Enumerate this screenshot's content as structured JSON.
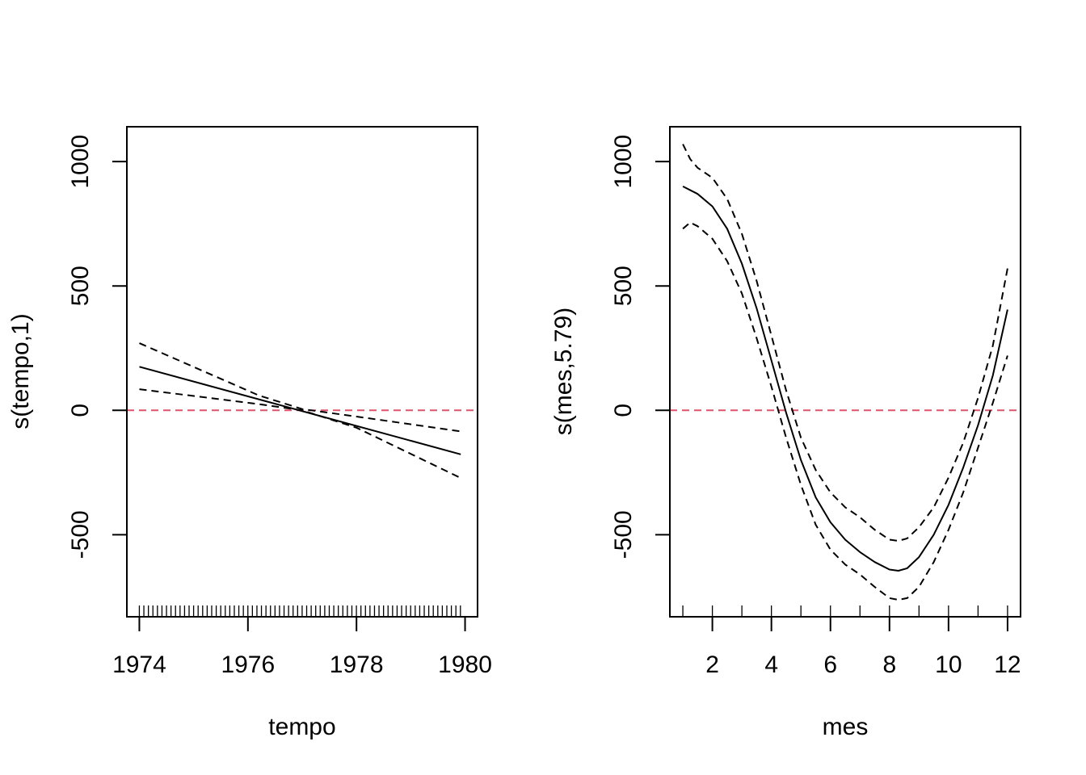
{
  "colors": {
    "fit": "#000000",
    "band": "#000000",
    "zero_line": "#DF536B"
  },
  "chart_data": [
    {
      "type": "line",
      "xlabel": "tempo",
      "ylabel": "s(tempo,1)",
      "xlim": [
        1973.77,
        1980.23
      ],
      "ylim": [
        -830,
        1140
      ],
      "xticks": [
        1974,
        1976,
        1978,
        1980
      ],
      "yticks": [
        -500,
        0,
        500,
        1000
      ],
      "reference_line": {
        "y": 0,
        "style": "dashed"
      },
      "rug": {
        "from": 1974.0,
        "to": 1979.92,
        "step": 0.0833
      },
      "series": [
        {
          "role": "fit",
          "style": "solid",
          "x": [
            1974.0,
            1979.92
          ],
          "y": [
            175,
            -177
          ]
        },
        {
          "role": "upper",
          "style": "dashed",
          "x": [
            1974.0,
            1976.2,
            1977.0,
            1978.0,
            1979.92
          ],
          "y": [
            270,
            60,
            5,
            -25,
            -85
          ]
        },
        {
          "role": "lower",
          "style": "dashed",
          "x": [
            1974.0,
            1976.2,
            1977.0,
            1978.0,
            1979.92
          ],
          "y": [
            85,
            25,
            0,
            -70,
            -272
          ]
        }
      ]
    },
    {
      "type": "line",
      "xlabel": "mes",
      "ylabel": "s(mes,5.79)",
      "xlim": [
        0.56,
        12.44
      ],
      "ylim": [
        -830,
        1140
      ],
      "xticks": [
        2,
        4,
        6,
        8,
        10,
        12
      ],
      "yticks": [
        -500,
        0,
        500,
        1000
      ],
      "reference_line": {
        "y": 0,
        "style": "dashed"
      },
      "rug": {
        "from": 1,
        "to": 12,
        "step": 1
      },
      "series": [
        {
          "role": "fit",
          "style": "solid",
          "x": [
            1,
            1.5,
            2,
            2.5,
            3,
            3.5,
            4,
            4.5,
            5,
            5.5,
            6,
            6.5,
            7,
            7.5,
            8,
            8.3,
            8.6,
            9,
            9.5,
            10,
            10.5,
            11,
            11.5,
            12
          ],
          "y": [
            900,
            870,
            820,
            730,
            590,
            410,
            200,
            -10,
            -200,
            -350,
            -450,
            -520,
            -570,
            -610,
            -640,
            -645,
            -635,
            -590,
            -500,
            -380,
            -230,
            -60,
            140,
            405
          ]
        },
        {
          "role": "upper",
          "style": "dashed",
          "x": [
            1,
            1.25,
            1.5,
            2,
            2.5,
            3,
            3.5,
            4,
            4.5,
            5,
            5.5,
            6,
            6.5,
            7,
            7.5,
            8,
            8.3,
            8.6,
            9,
            9.5,
            10,
            10.5,
            11,
            11.5,
            12
          ],
          "y": [
            1070,
            1010,
            975,
            935,
            850,
            710,
            520,
            300,
            80,
            -110,
            -240,
            -330,
            -390,
            -430,
            -480,
            -520,
            -525,
            -515,
            -470,
            -390,
            -270,
            -130,
            50,
            260,
            570
          ]
        },
        {
          "role": "lower",
          "style": "dashed",
          "x": [
            1,
            1.25,
            1.5,
            2,
            2.5,
            3,
            3.5,
            4,
            4.5,
            5,
            5.5,
            6,
            6.5,
            7,
            7.5,
            8,
            8.3,
            8.6,
            9,
            9.5,
            10,
            10.5,
            11,
            11.5,
            12
          ],
          "y": [
            730,
            755,
            740,
            690,
            600,
            470,
            290,
            95,
            -110,
            -300,
            -460,
            -560,
            -620,
            -660,
            -710,
            -755,
            -762,
            -755,
            -710,
            -610,
            -480,
            -330,
            -150,
            30,
            220
          ]
        }
      ]
    }
  ]
}
